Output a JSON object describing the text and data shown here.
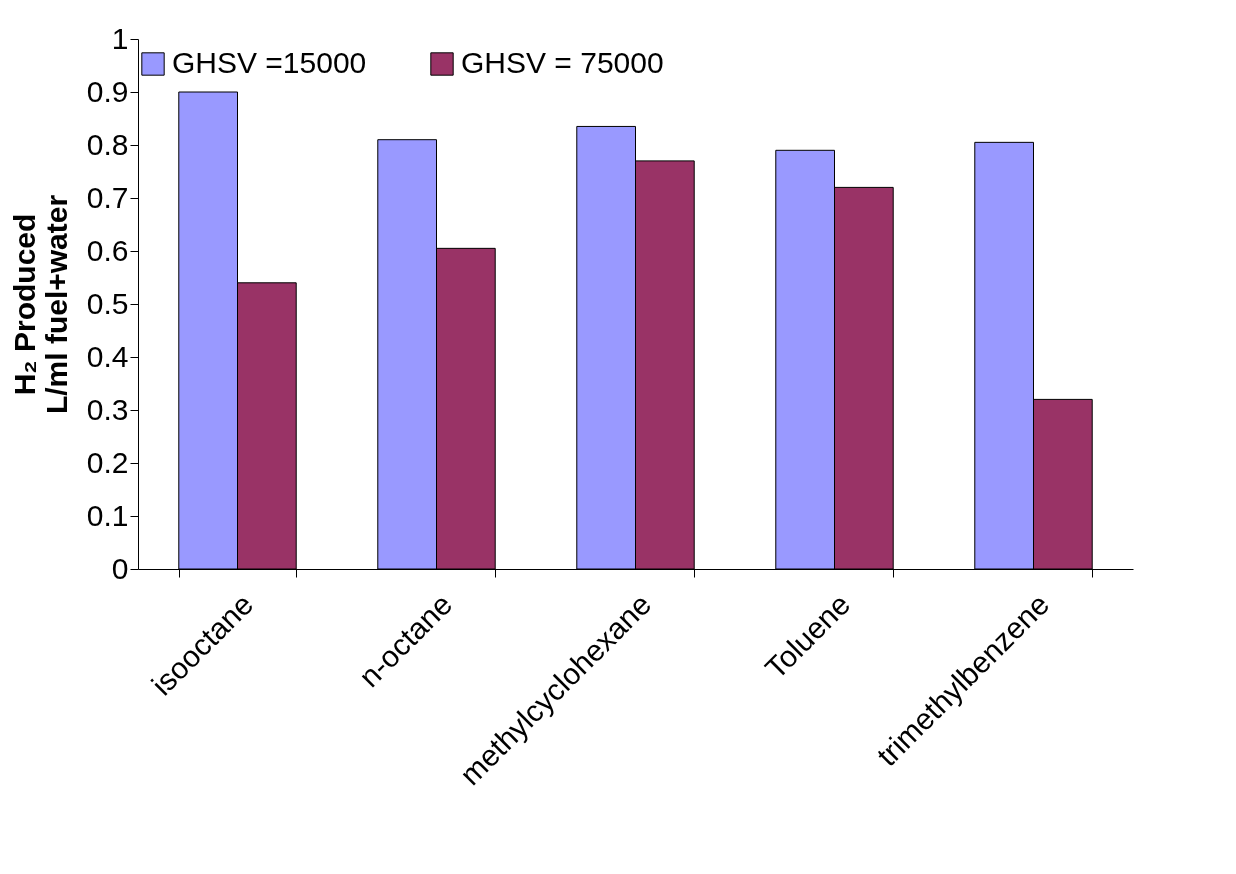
{
  "chart_data": {
    "type": "bar",
    "ylabel": "H₂ Produced\nL/ml fuel+water",
    "categories": [
      "isooctane",
      "n-octane",
      "methylcyclohexane",
      "Toluene",
      "trimethylbenzene"
    ],
    "series": [
      {
        "name": "GHSV =15000",
        "color": "#9999ff",
        "values": [
          0.9,
          0.81,
          0.835,
          0.79,
          0.805
        ]
      },
      {
        "name": "GHSV = 75000",
        "color": "#993366",
        "values": [
          0.54,
          0.605,
          0.77,
          0.72,
          0.32
        ]
      }
    ],
    "ylim": [
      0,
      1
    ],
    "yticks": [
      0,
      0.1,
      0.2,
      0.3,
      0.4,
      0.5,
      0.6,
      0.7,
      0.8,
      0.9,
      1
    ],
    "grid": false,
    "legend": "top"
  }
}
